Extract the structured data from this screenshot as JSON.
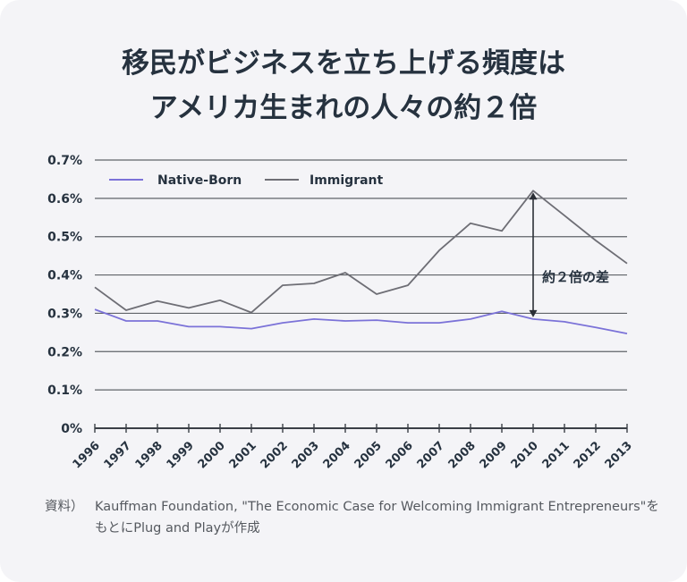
{
  "title": {
    "line1": "移民がビジネスを立ち上げる頻度は",
    "line2": "アメリカ生まれの人々の約２倍"
  },
  "source": {
    "label": "資料）",
    "text": "Kauffman Foundation, \"The Economic Case for Welcoming Immigrant Entrepreneurs\"をもとにPlug and Playが作成"
  },
  "colors": {
    "native": "#7b72d8",
    "immigrant": "#6e6e75",
    "grid": "#5f6368",
    "text": "#26323f",
    "background": "#f4f4f7"
  },
  "chart_data": {
    "type": "line",
    "x": [
      "1996",
      "1997",
      "1998",
      "1999",
      "2000",
      "2001",
      "2002",
      "2003",
      "2004",
      "2005",
      "2006",
      "2007",
      "2008",
      "2009",
      "2010",
      "2011",
      "2012",
      "2013"
    ],
    "series": [
      {
        "name": "Native-Born",
        "color": "#7b72d8",
        "values": [
          0.31,
          0.28,
          0.28,
          0.265,
          0.265,
          0.26,
          0.275,
          0.285,
          0.28,
          0.282,
          0.275,
          0.275,
          0.285,
          0.305,
          0.285,
          0.278,
          0.263,
          0.247
        ]
      },
      {
        "name": "Immigrant",
        "color": "#6e6e75",
        "values": [
          0.368,
          0.308,
          0.332,
          0.314,
          0.334,
          0.302,
          0.373,
          0.378,
          0.406,
          0.35,
          0.373,
          0.464,
          0.535,
          0.515,
          0.62,
          0.555,
          0.49,
          0.43
        ]
      }
    ],
    "y_ticks": [
      "0%",
      "0.1%",
      "0.2%",
      "0.3%",
      "0.4%",
      "0.5%",
      "0.6%",
      "0.7%"
    ],
    "ylim": [
      0,
      0.7
    ],
    "grid": true,
    "legend": "top-left",
    "annotation": {
      "text": "約２倍の差",
      "x": "2010",
      "from": 0.285,
      "to": 0.62
    }
  }
}
